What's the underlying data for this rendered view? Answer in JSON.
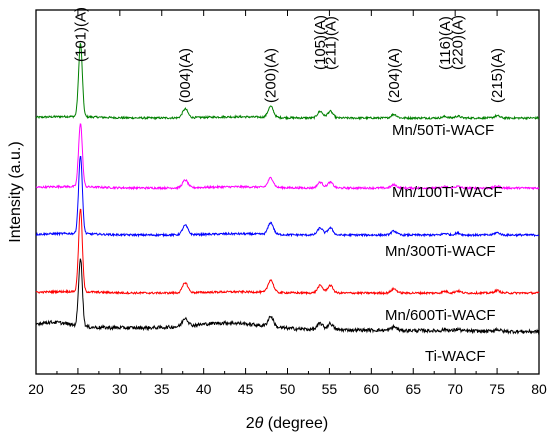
{
  "chart_data": {
    "type": "line",
    "title": "",
    "xlabel_prefix": "2",
    "xlabel_italic": "θ",
    "xlabel_suffix": " (degree)",
    "ylabel": "Intensity (a.u.)",
    "xlim": [
      20,
      80
    ],
    "x_ticks": [
      20,
      25,
      30,
      35,
      40,
      45,
      50,
      55,
      60,
      65,
      70,
      75,
      80
    ],
    "y_ticks_shown": false,
    "grid": false,
    "legend": "labels-beside-curves",
    "peaks": [
      {
        "label": "(101)(A)",
        "x": 25.3,
        "height": 1.0
      },
      {
        "label": "(004)(A)",
        "x": 37.8,
        "height": 0.12
      },
      {
        "label": "(200)(A)",
        "x": 48.0,
        "height": 0.15
      },
      {
        "label": "(105)(A)",
        "x": 53.9,
        "height": 0.09
      },
      {
        "label": "(211)(A)",
        "x": 55.1,
        "height": 0.09
      },
      {
        "label": "(204)(A)",
        "x": 62.7,
        "height": 0.05
      },
      {
        "label": "(116)(A)",
        "x": 68.8,
        "height": 0.02
      },
      {
        "label": "(220)(A)",
        "x": 70.3,
        "height": 0.025
      },
      {
        "label": "(215)(A)",
        "x": 75.0,
        "height": 0.03
      }
    ],
    "series": [
      {
        "name": "Mn/50Ti-WACF",
        "color": "#008000",
        "scale": 0.75
      },
      {
        "name": "Mn/100Ti-WACF",
        "color": "#ff00ff",
        "scale": 0.65
      },
      {
        "name": "Mn/300Ti-WACF",
        "color": "#0000ff",
        "scale": 0.8
      },
      {
        "name": "Mn/600Ti-WACF",
        "color": "#ff0000",
        "scale": 0.85
      },
      {
        "name": "Ti-WACF",
        "color": "#000000",
        "scale": 0.7
      }
    ]
  }
}
